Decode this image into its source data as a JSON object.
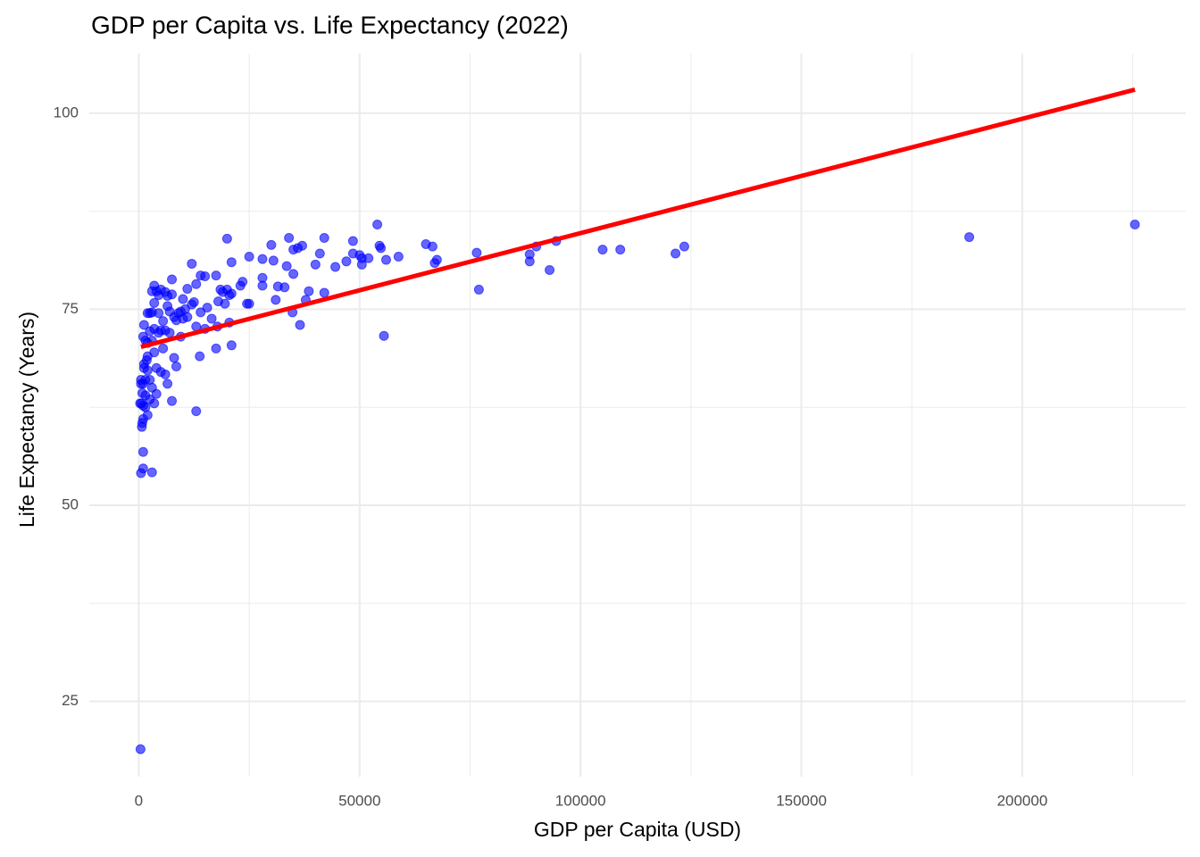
{
  "chart_data": {
    "type": "scatter",
    "title": "GDP per Capita vs. Life Expectancy (2022)",
    "x_label": "GDP per Capita (USD)",
    "y_label": "Life Expectancy (Years)",
    "xlim": [
      -11200,
      237000
    ],
    "ylim": [
      15.4,
      107.6
    ],
    "xticks": [
      0,
      50000,
      100000,
      150000,
      200000
    ],
    "yticks": [
      25,
      50,
      75,
      100
    ],
    "grid": true,
    "minor_grid": true,
    "series": [
      {
        "color": "blue",
        "x": [
          225500,
          188000,
          123500,
          121500,
          109000,
          105000,
          94500,
          90000,
          88500,
          88500,
          93000,
          76500,
          77000,
          67500,
          67000,
          66500,
          65000,
          58800,
          56000,
          55500,
          54000,
          54500,
          54800,
          52000,
          50500,
          50500,
          50000,
          48500,
          48500,
          47000,
          44500,
          42000,
          42000,
          41000,
          40000,
          38500,
          37800,
          37000,
          36500,
          36000,
          35000,
          35000,
          34800,
          34000,
          33500,
          33000,
          31500,
          31000,
          30500,
          30000,
          28000,
          28000,
          28000,
          25000,
          25000,
          24500,
          23500,
          23000,
          21000,
          21000,
          21000,
          20500,
          20500,
          20000,
          20000,
          19500,
          19000,
          18500,
          18000,
          17800,
          17500,
          17500,
          16500,
          15500,
          15000,
          15000,
          14000,
          14000,
          13800,
          13000,
          13000,
          13000,
          12500,
          12000,
          12000,
          11000,
          11000,
          10500,
          10000,
          10000,
          9500,
          9500,
          9000,
          8500,
          8500,
          8000,
          8000,
          7500,
          7500,
          7500,
          7000,
          7000,
          6500,
          6500,
          6500,
          6000,
          6000,
          6000,
          5500,
          5500,
          5000,
          5000,
          5000,
          4500,
          4500,
          4500,
          4000,
          4000,
          4000,
          3500,
          3500,
          3500,
          3500,
          3500,
          3000,
          3000,
          3000,
          3000,
          3000,
          2500,
          2500,
          2500,
          2500,
          2000,
          2000,
          2000,
          2000,
          2000,
          1800,
          1500,
          1500,
          1500,
          1500,
          1200,
          1200,
          1200,
          1000,
          1000,
          1000,
          1000,
          1000,
          1000,
          800,
          800,
          700,
          600,
          500,
          500,
          500,
          400,
          300
        ],
        "values": [
          85.8,
          84.2,
          83.0,
          82.1,
          82.6,
          82.6,
          83.7,
          83.0,
          82.0,
          81.1,
          80.0,
          82.2,
          77.5,
          81.3,
          80.9,
          83.0,
          83.3,
          81.7,
          81.3,
          71.6,
          85.8,
          83.1,
          82.8,
          81.5,
          80.7,
          81.5,
          81.9,
          82.1,
          83.7,
          81.1,
          80.4,
          77.1,
          84.1,
          82.1,
          80.7,
          77.3,
          76.2,
          83.1,
          73.0,
          82.8,
          82.6,
          79.5,
          74.6,
          84.1,
          80.5,
          77.8,
          77.9,
          76.2,
          81.2,
          83.2,
          81.4,
          79.0,
          78.0,
          81.7,
          75.7,
          75.7,
          78.5,
          78.0,
          70.4,
          81.0,
          77.0,
          76.8,
          73.3,
          84.0,
          77.5,
          75.7,
          77.2,
          77.5,
          76.0,
          72.8,
          70.0,
          79.3,
          73.8,
          75.2,
          79.2,
          72.5,
          79.3,
          74.6,
          69.0,
          62.0,
          78.2,
          72.8,
          75.9,
          80.8,
          75.6,
          77.6,
          74.0,
          75.0,
          73.8,
          76.3,
          71.5,
          74.7,
          74.5,
          73.6,
          67.7,
          68.8,
          74.0,
          78.8,
          76.9,
          63.3,
          74.7,
          72.0,
          75.4,
          76.7,
          65.5,
          77.2,
          72.3,
          66.7,
          73.5,
          70.0,
          77.5,
          72.3,
          67.0,
          76.8,
          74.5,
          72.0,
          77.3,
          67.5,
          64.2,
          78.0,
          75.8,
          72.5,
          69.5,
          63.0,
          77.3,
          74.6,
          71.0,
          65.0,
          54.2,
          72.2,
          74.5,
          66.0,
          63.5,
          74.5,
          70.7,
          69.0,
          67.2,
          61.5,
          68.5,
          71.0,
          66.0,
          64.0,
          62.5,
          73.0,
          68.0,
          67.5,
          71.5,
          65.5,
          62.7,
          61.0,
          56.8,
          54.7,
          64.3,
          60.5,
          60.0,
          63.0,
          66.0,
          65.5,
          54.1,
          18.9,
          63.0
        ]
      }
    ],
    "trend": {
      "color": "red",
      "x": [
        500,
        225500
      ],
      "values": [
        70.2,
        103.0
      ]
    }
  }
}
